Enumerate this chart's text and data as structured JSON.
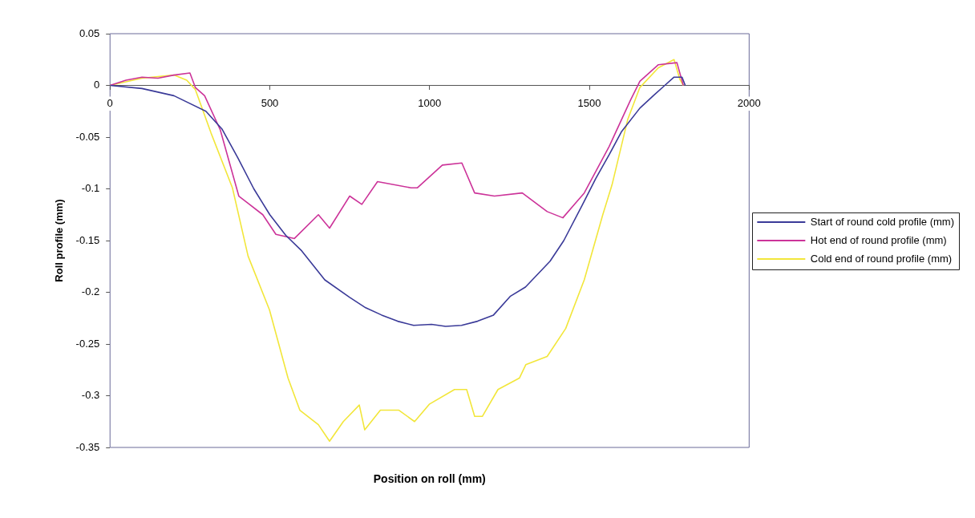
{
  "chart_data": {
    "type": "line",
    "xlabel": "Position on roll (mm)",
    "ylabel": "Roll profile (mm)",
    "xlim": [
      0,
      2000
    ],
    "xticks": [
      0,
      500,
      1000,
      1500,
      2000
    ],
    "ylim": [
      -0.35,
      0.05
    ],
    "yticks": [
      0.05,
      0,
      -0.05,
      -0.1,
      -0.15,
      -0.2,
      -0.25,
      -0.3,
      -0.35
    ],
    "grid": false,
    "legend": "right",
    "marker": "none",
    "line_style": "solid",
    "series": [
      {
        "name": "Start of round cold profile (mm)",
        "color": "#3a3a98",
        "x": [
          0,
          100,
          200,
          300,
          350,
          400,
          450,
          500,
          550,
          600,
          672,
          750,
          800,
          850,
          900,
          950,
          1006,
          1050,
          1100,
          1150,
          1200,
          1252,
          1300,
          1377,
          1420,
          1484,
          1520,
          1562,
          1600,
          1658,
          1700,
          1736,
          1765,
          1790,
          1800
        ],
        "values": [
          0,
          -0.003,
          -0.01,
          -0.025,
          -0.042,
          -0.07,
          -0.1,
          -0.125,
          -0.145,
          -0.16,
          -0.188,
          -0.205,
          -0.215,
          -0.222,
          -0.228,
          -0.232,
          -0.231,
          -0.233,
          -0.232,
          -0.228,
          -0.222,
          -0.204,
          -0.195,
          -0.17,
          -0.15,
          -0.112,
          -0.09,
          -0.067,
          -0.045,
          -0.022,
          -0.01,
          0,
          0.008,
          0.008,
          0
        ]
      },
      {
        "name": "Hot end of round profile (mm)",
        "color": "#cc3399",
        "x": [
          0,
          50,
          100,
          150,
          200,
          250,
          267,
          296,
          345,
          403,
          478,
          519,
          577,
          652,
          687,
          750,
          788,
          837,
          942,
          962,
          1040,
          1101,
          1141,
          1203,
          1290,
          1368,
          1417,
          1484,
          1562,
          1629,
          1658,
          1716,
          1774,
          1794
        ],
        "values": [
          0,
          0.005,
          0.008,
          0.007,
          0.01,
          0.012,
          -0.002,
          -0.01,
          -0.043,
          -0.107,
          -0.125,
          -0.144,
          -0.148,
          -0.125,
          -0.138,
          -0.107,
          -0.115,
          -0.093,
          -0.099,
          -0.099,
          -0.077,
          -0.075,
          -0.104,
          -0.107,
          -0.104,
          -0.122,
          -0.128,
          -0.104,
          -0.059,
          -0.014,
          0.004,
          0.02,
          0.022,
          0
        ]
      },
      {
        "name": "Cold end of round profile (mm)",
        "color": "#f2e63a",
        "x": [
          0,
          100,
          200,
          240,
          267,
          316,
          383,
          432,
          499,
          557,
          594,
          652,
          687,
          730,
          780,
          797,
          846,
          904,
          953,
          1000,
          1078,
          1116,
          1141,
          1165,
          1214,
          1281,
          1301,
          1368,
          1426,
          1484,
          1542,
          1571,
          1620,
          1658,
          1716,
          1765,
          1783,
          1794
        ],
        "values": [
          0,
          0.007,
          0.01,
          0.005,
          -0.004,
          -0.046,
          -0.099,
          -0.165,
          -0.217,
          -0.283,
          -0.314,
          -0.328,
          -0.344,
          -0.325,
          -0.309,
          -0.333,
          -0.314,
          -0.314,
          -0.325,
          -0.308,
          -0.294,
          -0.294,
          -0.32,
          -0.32,
          -0.294,
          -0.283,
          -0.27,
          -0.262,
          -0.235,
          -0.188,
          -0.125,
          -0.096,
          -0.033,
          -0.002,
          0.017,
          0.025,
          0.006,
          0
        ]
      }
    ]
  }
}
